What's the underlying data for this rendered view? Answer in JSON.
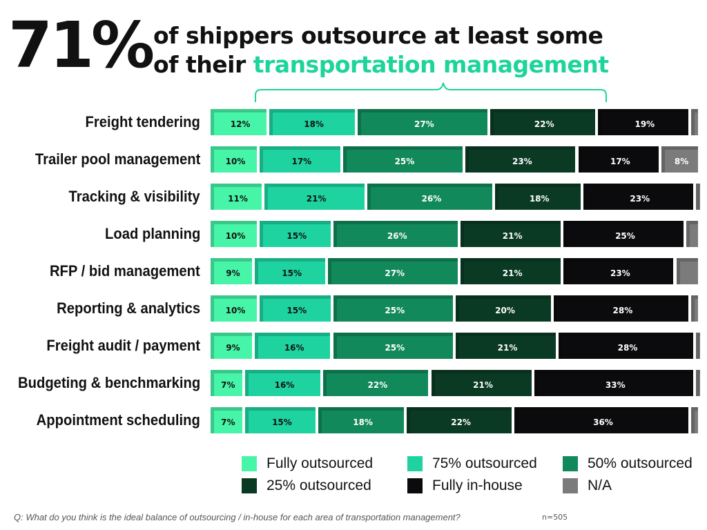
{
  "chart_data": {
    "type": "bar",
    "orientation": "horizontal-stacked",
    "title_big": "71%",
    "title_line1": "of shippers outsource at least some",
    "title_line2_plain": "of their ",
    "title_line2_accent": "transportation management",
    "categories": [
      "Freight tendering",
      "Trailer pool management",
      "Tracking & visibility",
      "Load planning",
      "RFP / bid management",
      "Reporting & analytics",
      "Freight audit / payment",
      "Budgeting & benchmarking",
      "Appointment scheduling"
    ],
    "series": [
      {
        "name": "Fully outsourced",
        "color": "#47f5a8",
        "text": "#111",
        "values": [
          12,
          10,
          11,
          10,
          9,
          10,
          9,
          7,
          7
        ]
      },
      {
        "name": "75% outsourced",
        "color": "#1ed3a0",
        "text": "#111",
        "values": [
          18,
          17,
          21,
          15,
          15,
          15,
          16,
          16,
          15
        ]
      },
      {
        "name": "50% outsourced",
        "color": "#12895a",
        "text": "#fff",
        "values": [
          27,
          25,
          26,
          26,
          27,
          25,
          25,
          22,
          18
        ]
      },
      {
        "name": "25% outsourced",
        "color": "#0b3a24",
        "text": "#fff",
        "values": [
          22,
          23,
          18,
          21,
          21,
          20,
          21,
          21,
          22
        ]
      },
      {
        "name": "Fully in-house",
        "color": "#0b0b0d",
        "text": "#fff",
        "values": [
          19,
          17,
          23,
          25,
          23,
          28,
          28,
          33,
          36
        ]
      },
      {
        "name": "N/A",
        "color": "#7b7b7b",
        "text": "#fff",
        "values": [
          2,
          8,
          1,
          3,
          5,
          2,
          1,
          1,
          2
        ]
      }
    ],
    "labeled_na": [
      false,
      true,
      false,
      false,
      false,
      false,
      false,
      false,
      false
    ],
    "xlim": [
      0,
      100
    ],
    "legend": "bottom",
    "footnote": "Q: What do you think is the ideal balance of outsourcing / in-house for each area of transportation management?",
    "sample": "n=505"
  }
}
